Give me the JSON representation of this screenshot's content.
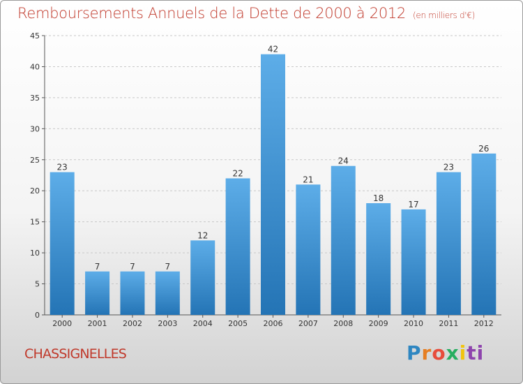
{
  "title": "Remboursements Annuels de la Dette de 2000 à 2012",
  "unit": "(en milliers d'€)",
  "city": "CHASSIGNELLES",
  "logo": "Proxiti",
  "colors": {
    "bar": "#3d95d6",
    "title": "#c0392b",
    "grid": "#c8c8c8"
  },
  "chart_data": {
    "type": "bar",
    "title": "Remboursements Annuels de la Dette de 2000 à 2012",
    "xlabel": "",
    "ylabel": "",
    "categories": [
      "2000",
      "2001",
      "2002",
      "2003",
      "2004",
      "2005",
      "2006",
      "2007",
      "2008",
      "2009",
      "2010",
      "2011",
      "2012"
    ],
    "values": [
      23,
      7,
      7,
      7,
      12,
      22,
      42,
      21,
      24,
      18,
      17,
      23,
      26
    ],
    "ylim": [
      0,
      45
    ],
    "yticks": [
      0,
      5,
      10,
      15,
      20,
      25,
      30,
      35,
      40,
      45
    ],
    "grid": true,
    "data_labels": true
  }
}
